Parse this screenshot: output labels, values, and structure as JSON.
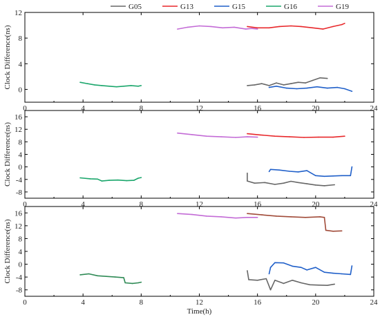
{
  "legend": [
    {
      "label": "G05",
      "color": "#666666"
    },
    {
      "label": "G13",
      "color": "#e8272a"
    },
    {
      "label": "G15",
      "color": "#1f5fc9"
    },
    {
      "label": "G16",
      "color": "#1aa66b"
    },
    {
      "label": "G19",
      "color": "#c36bd6"
    }
  ],
  "chart_data": [
    {
      "type": "line",
      "xlabel": "",
      "ylabel": "Clock Difference(ns)",
      "xlim": [
        0,
        24
      ],
      "ylim": [
        -2,
        12
      ],
      "xticks": [
        0,
        4,
        8,
        12,
        16,
        20,
        24
      ],
      "yticks": [
        0,
        4,
        8,
        12
      ],
      "series": [
        {
          "name": "G05",
          "color": "#666666",
          "x": [
            15.3,
            15.8,
            16.3,
            16.8,
            17.3,
            17.8,
            18.3,
            18.8,
            19.3,
            19.8,
            20.3,
            20.8
          ],
          "y": [
            0.6,
            0.7,
            0.9,
            0.6,
            1.0,
            0.7,
            0.9,
            1.1,
            1.0,
            1.4,
            1.8,
            1.7
          ]
        },
        {
          "name": "G13",
          "color": "#e8272a",
          "x": [
            15.3,
            16.0,
            16.8,
            17.5,
            18.3,
            19.0,
            19.8,
            20.5,
            21.2,
            21.8,
            22.0
          ],
          "y": [
            9.8,
            9.6,
            9.6,
            9.8,
            9.9,
            9.8,
            9.6,
            9.4,
            9.8,
            10.1,
            10.3
          ]
        },
        {
          "name": "G15",
          "color": "#1f5fc9",
          "x": [
            16.8,
            17.3,
            18.0,
            18.7,
            19.4,
            20.1,
            20.8,
            21.5,
            22.0,
            22.5
          ],
          "y": [
            0.3,
            0.5,
            0.2,
            0.1,
            0.2,
            0.4,
            0.2,
            0.3,
            0.1,
            -0.3
          ]
        },
        {
          "name": "G16",
          "color": "#1aa66b",
          "x": [
            3.8,
            4.3,
            4.8,
            5.3,
            5.8,
            6.3,
            6.8,
            7.3,
            7.8,
            8.0
          ],
          "y": [
            1.1,
            0.9,
            0.7,
            0.6,
            0.5,
            0.4,
            0.5,
            0.6,
            0.5,
            0.6
          ]
        },
        {
          "name": "G19",
          "color": "#c36bd6",
          "x": [
            10.5,
            11.2,
            12.0,
            12.8,
            13.6,
            14.4,
            15.2,
            15.6,
            16.0
          ],
          "y": [
            9.4,
            9.7,
            9.9,
            9.8,
            9.6,
            9.7,
            9.4,
            9.5,
            9.4
          ]
        }
      ]
    },
    {
      "type": "line",
      "xlabel": "",
      "ylabel": "Clock Difference(ns)",
      "xlim": [
        0,
        24
      ],
      "ylim": [
        -10,
        18
      ],
      "xticks": [
        0,
        4,
        8,
        12,
        16,
        20,
        24
      ],
      "yticks": [
        -8,
        -4,
        0,
        4,
        8,
        12,
        16
      ],
      "series": [
        {
          "name": "G05",
          "color": "#666666",
          "x": [
            15.3,
            15.3,
            15.8,
            16.5,
            17.2,
            17.8,
            18.3,
            18.8,
            19.4,
            20.0,
            20.6,
            21.3
          ],
          "y": [
            -2.0,
            -4.5,
            -5.2,
            -5.0,
            -5.6,
            -5.2,
            -4.6,
            -5.0,
            -5.4,
            -5.8,
            -6.0,
            -5.7
          ]
        },
        {
          "name": "G13",
          "color": "#e8272a",
          "x": [
            15.3,
            16.2,
            17.2,
            18.2,
            19.2,
            20.2,
            21.2,
            22.0
          ],
          "y": [
            10.6,
            10.2,
            9.8,
            9.6,
            9.4,
            9.5,
            9.5,
            9.8
          ]
        },
        {
          "name": "G15",
          "color": "#1f5fc9",
          "x": [
            16.8,
            16.9,
            17.5,
            18.2,
            18.8,
            19.4,
            20.0,
            20.6,
            21.2,
            21.8,
            22.4,
            22.5
          ],
          "y": [
            -1.5,
            -0.8,
            -1.0,
            -1.4,
            -1.6,
            -1.2,
            -2.8,
            -3.0,
            -2.9,
            -2.8,
            -2.8,
            0.0
          ]
        },
        {
          "name": "G16",
          "color": "#1aa66b",
          "x": [
            3.8,
            4.5,
            5.0,
            5.3,
            5.8,
            6.4,
            7.0,
            7.5,
            7.8,
            8.0
          ],
          "y": [
            -3.5,
            -3.8,
            -3.9,
            -4.5,
            -4.3,
            -4.2,
            -4.4,
            -4.3,
            -3.6,
            -3.4
          ]
        },
        {
          "name": "G19",
          "color": "#c36bd6",
          "x": [
            10.5,
            11.5,
            12.5,
            13.5,
            14.5,
            15.3,
            16.0
          ],
          "y": [
            10.8,
            10.3,
            9.8,
            9.6,
            9.4,
            9.6,
            9.5
          ]
        }
      ]
    },
    {
      "type": "line",
      "xlabel": "Time(h)",
      "ylabel": "Clock Difference(ns)",
      "xlim": [
        0,
        24
      ],
      "ylim": [
        -10,
        18
      ],
      "xticks": [
        0,
        4,
        8,
        12,
        16,
        20,
        24
      ],
      "yticks": [
        -8,
        -4,
        0,
        4,
        8,
        12,
        16
      ],
      "series": [
        {
          "name": "G05",
          "color": "#666666",
          "x": [
            15.3,
            15.4,
            16.0,
            16.6,
            16.9,
            17.2,
            17.8,
            18.4,
            19.0,
            19.6,
            20.2,
            20.8,
            21.3
          ],
          "y": [
            -2.0,
            -4.8,
            -5.0,
            -4.5,
            -8.0,
            -5.0,
            -6.0,
            -5.0,
            -5.8,
            -6.4,
            -6.5,
            -6.6,
            -6.2
          ]
        },
        {
          "name": "G13",
          "color": "#a04a38",
          "x": [
            15.3,
            16.3,
            17.3,
            18.3,
            19.3,
            20.3,
            20.6,
            20.7,
            21.2,
            21.8
          ],
          "y": [
            15.8,
            15.4,
            15.0,
            14.8,
            14.6,
            14.8,
            14.6,
            10.6,
            10.3,
            10.4
          ]
        },
        {
          "name": "G15",
          "color": "#1f5fc9",
          "x": [
            16.8,
            16.9,
            17.2,
            17.8,
            18.4,
            19.0,
            19.4,
            20.0,
            20.6,
            21.2,
            21.8,
            22.4,
            22.5
          ],
          "y": [
            -3.0,
            -1.0,
            0.5,
            0.4,
            -0.6,
            -1.0,
            -1.8,
            -1.0,
            -2.5,
            -2.8,
            -3.0,
            -3.2,
            -0.5
          ]
        },
        {
          "name": "G16",
          "color": "#2e8a55",
          "x": [
            3.8,
            4.4,
            5.0,
            5.6,
            6.2,
            6.8,
            6.9,
            7.4,
            7.8,
            8.0
          ],
          "y": [
            -3.3,
            -3.0,
            -3.6,
            -3.8,
            -4.0,
            -4.2,
            -5.8,
            -6.0,
            -5.8,
            -5.6
          ]
        },
        {
          "name": "G19",
          "color": "#c36bd6",
          "x": [
            10.5,
            11.5,
            12.5,
            13.5,
            14.5,
            15.3,
            16.0
          ],
          "y": [
            15.8,
            15.5,
            15.0,
            14.8,
            14.4,
            14.6,
            14.6
          ]
        }
      ]
    }
  ]
}
